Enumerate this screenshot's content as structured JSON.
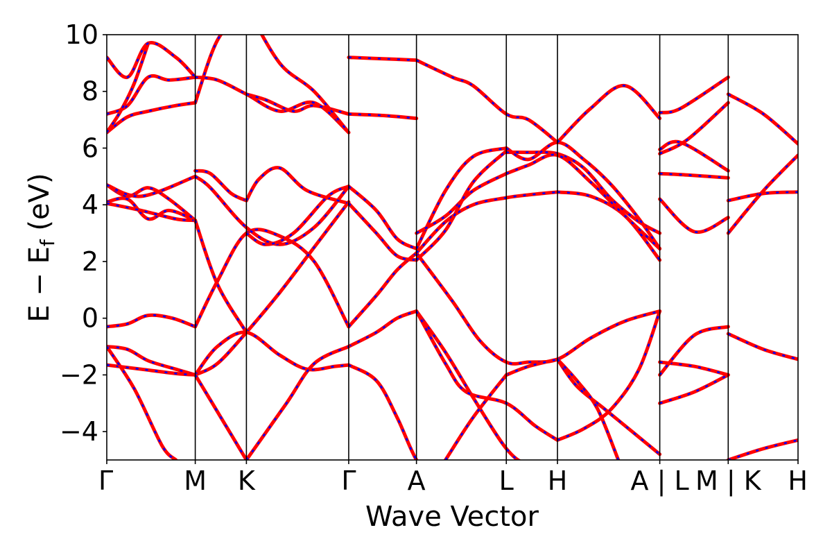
{
  "chart_data": {
    "type": "line",
    "title": "",
    "xlabel": "Wave Vector",
    "ylabel_parts": {
      "main": "E − E",
      "sub": "f",
      "unit": " (eV)"
    },
    "ylim": [
      -5,
      10
    ],
    "yticks": [
      -4,
      -2,
      0,
      2,
      4,
      6,
      8,
      10
    ],
    "ytick_labels": [
      "−4",
      "−2",
      "0",
      "2",
      "4",
      "6",
      "8",
      "10"
    ],
    "xlim": [
      0,
      10
    ],
    "kpoints": [
      {
        "label": "Γ",
        "x": 0
      },
      {
        "label": "M",
        "x": 1.28
      },
      {
        "label": "K",
        "x": 2.02
      },
      {
        "label": "Γ",
        "x": 3.5
      },
      {
        "label": "A",
        "x": 4.48
      },
      {
        "label": "L",
        "x": 5.78
      },
      {
        "label": "H",
        "x": 6.52
      },
      {
        "label": "A | L",
        "x": 8.0
      },
      {
        "label": "M | K",
        "x": 8.99
      },
      {
        "label": "H",
        "x": 10.0
      }
    ],
    "grid": false,
    "legend": "none",
    "colors": {
      "solid": "#ff0000",
      "dashed": "#0000ff"
    },
    "series": [
      {
        "x": [
          0,
          0.3,
          0.6,
          0.95,
          1.28
        ],
        "y": [
          -0.3,
          -0.2,
          0.1,
          0.0,
          -0.3
        ]
      },
      {
        "x": [
          1.28,
          1.6,
          2.02,
          2.5,
          3.0,
          3.5
        ],
        "y": [
          -0.3,
          1.3,
          3.0,
          2.9,
          2.0,
          -0.3
        ]
      },
      {
        "x": [
          3.5,
          3.9,
          4.2,
          4.48
        ],
        "y": [
          -0.3,
          0.8,
          1.7,
          2.3
        ]
      },
      {
        "x": [
          4.48,
          5.0,
          5.4,
          5.78,
          6.1,
          6.52,
          7.0,
          7.5,
          8.0
        ],
        "y": [
          2.3,
          0.6,
          -0.8,
          -1.55,
          -1.55,
          -1.45,
          -0.7,
          -0.1,
          0.25
        ]
      },
      {
        "x": [
          0,
          0.3,
          0.6,
          1.0,
          1.28
        ],
        "y": [
          -1.0,
          -1.1,
          -1.5,
          -1.8,
          -2.0
        ]
      },
      {
        "x": [
          0,
          0.5,
          1.0,
          1.28
        ],
        "y": [
          -1.65,
          -1.8,
          -1.95,
          -2.0
        ]
      },
      {
        "x": [
          1.28,
          1.6,
          2.02,
          2.5,
          3.0,
          3.5
        ],
        "y": [
          -2.0,
          -1.6,
          -0.5,
          0.9,
          2.5,
          4.1
        ]
      },
      {
        "x": [
          1.28,
          1.6,
          2.02,
          2.5,
          2.9,
          3.3,
          3.5
        ],
        "y": [
          -2.0,
          -1.0,
          -0.5,
          -1.3,
          -1.8,
          -1.7,
          -1.65
        ]
      },
      {
        "x": [
          3.5,
          3.9,
          4.2,
          4.48
        ],
        "y": [
          -1.0,
          -0.5,
          0.0,
          0.25
        ]
      },
      {
        "x": [
          3.5,
          3.9,
          4.2,
          4.48,
          4.8,
          5.2
        ],
        "y": [
          -1.65,
          -2.2,
          -3.5,
          -5.0,
          -6.0,
          -7.0
        ]
      },
      {
        "x": [
          4.48,
          4.9,
          5.3,
          5.78,
          6.1,
          6.52
        ],
        "y": [
          0.25,
          -1.2,
          -2.8,
          -4.6,
          -5.2,
          -5.5
        ]
      },
      {
        "x": [
          4.48,
          4.9,
          5.2,
          5.78,
          6.2,
          6.52
        ],
        "y": [
          0.25,
          -1.6,
          -2.6,
          -3.0,
          -3.8,
          -4.3
        ]
      },
      {
        "x": [
          5.78,
          6.1,
          6.52
        ],
        "y": [
          -2.0,
          -1.7,
          -1.45
        ]
      },
      {
        "x": [
          4.9,
          5.3,
          5.78
        ],
        "y": [
          -5.0,
          -3.5,
          -2.0
        ]
      },
      {
        "x": [
          6.52,
          6.9,
          7.3,
          7.7,
          8.0
        ],
        "y": [
          -4.3,
          -3.9,
          -3.2,
          -1.8,
          0.25
        ]
      },
      {
        "x": [
          6.52,
          6.8,
          7.2,
          7.6,
          8.0
        ],
        "y": [
          -1.45,
          -2.4,
          -3.2,
          -4.0,
          -4.8
        ]
      },
      {
        "x": [
          6.52,
          6.8,
          7.1,
          7.4
        ],
        "y": [
          -1.45,
          -2.2,
          -3.2,
          -5.0
        ]
      },
      {
        "x": [
          0,
          0.4,
          0.8,
          1.0
        ],
        "y": [
          -1.0,
          -2.5,
          -4.5,
          -5.0
        ]
      },
      {
        "x": [
          1.28,
          1.7,
          2.02
        ],
        "y": [
          -2.0,
          -3.7,
          -5.0
        ]
      },
      {
        "x": [
          2.02,
          2.6,
          3.0,
          3.5
        ],
        "y": [
          -5.0,
          -3.0,
          -1.6,
          -1.0
        ]
      },
      {
        "x": [
          0,
          0.3,
          0.6,
          0.9,
          1.28
        ],
        "y": [
          4.1,
          4.2,
          3.5,
          3.8,
          3.45
        ]
      },
      {
        "x": [
          0,
          0.3,
          0.6,
          0.9,
          1.28
        ],
        "y": [
          4.7,
          4.3,
          4.6,
          4.2,
          3.45
        ]
      },
      {
        "x": [
          0,
          0.5,
          1.0,
          1.28
        ],
        "y": [
          4.05,
          3.8,
          3.5,
          3.45
        ]
      },
      {
        "x": [
          0,
          0.5,
          1.28
        ],
        "y": [
          4.7,
          4.3,
          5.0
        ]
      },
      {
        "x": [
          1.28,
          1.6,
          2.02
        ],
        "y": [
          3.45,
          1.2,
          -0.5
        ]
      },
      {
        "x": [
          1.28,
          1.5,
          1.8,
          2.02
        ],
        "y": [
          5.2,
          5.1,
          4.4,
          4.15
        ]
      },
      {
        "x": [
          1.28,
          1.5,
          2.02,
          2.5,
          3.0,
          3.5
        ],
        "y": [
          5.0,
          4.6,
          3.2,
          2.6,
          3.2,
          4.65
        ]
      },
      {
        "x": [
          2.02,
          2.2,
          2.5,
          2.9,
          3.5
        ],
        "y": [
          4.15,
          4.9,
          5.3,
          4.5,
          4.05
        ]
      },
      {
        "x": [
          2.02,
          2.3,
          2.7,
          3.2,
          3.5
        ],
        "y": [
          3.0,
          2.6,
          3.0,
          4.3,
          4.65
        ]
      },
      {
        "x": [
          3.5,
          3.9,
          4.2,
          4.48
        ],
        "y": [
          4.65,
          3.8,
          2.8,
          2.45
        ]
      },
      {
        "x": [
          3.5,
          3.9,
          4.2,
          4.48
        ],
        "y": [
          4.05,
          3.0,
          2.2,
          2.05
        ]
      },
      {
        "x": [
          4.48,
          4.9,
          5.3,
          5.78,
          6.1,
          6.52
        ],
        "y": [
          2.3,
          3.4,
          4.0,
          4.25,
          4.35,
          4.45
        ]
      },
      {
        "x": [
          4.48,
          4.9,
          5.3,
          5.78
        ],
        "y": [
          2.45,
          4.5,
          5.7,
          6.0
        ]
      },
      {
        "x": [
          4.48,
          4.9,
          5.3,
          5.78
        ],
        "y": [
          3.0,
          3.6,
          4.5,
          5.1
        ]
      },
      {
        "x": [
          4.48,
          4.9,
          5.3,
          5.78
        ],
        "y": [
          2.05,
          3.1,
          4.8,
          5.9
        ]
      },
      {
        "x": [
          5.78,
          6.1,
          6.52,
          6.9,
          7.3,
          7.7,
          8.0
        ],
        "y": [
          5.85,
          5.85,
          5.8,
          5.3,
          4.2,
          3.4,
          3.0
        ]
      },
      {
        "x": [
          5.78,
          6.1,
          6.52,
          6.9,
          7.3,
          7.7,
          8.0
        ],
        "y": [
          6.0,
          5.6,
          6.2,
          5.6,
          4.7,
          3.5,
          2.45
        ]
      },
      {
        "x": [
          6.52,
          7.0,
          7.5,
          8.0
        ],
        "y": [
          4.45,
          4.3,
          3.6,
          2.05
        ]
      },
      {
        "x": [
          5.78,
          6.1,
          6.52,
          7.0,
          7.5,
          8.0
        ],
        "y": [
          5.1,
          5.4,
          5.75,
          4.8,
          3.6,
          2.45
        ]
      },
      {
        "x": [
          0,
          0.3,
          0.6,
          1.0,
          1.28
        ],
        "y": [
          6.55,
          7.1,
          7.3,
          7.5,
          7.6
        ]
      },
      {
        "x": [
          0,
          0.3,
          0.6,
          0.9,
          1.28
        ],
        "y": [
          7.2,
          7.5,
          8.5,
          8.4,
          8.5
        ]
      },
      {
        "x": [
          0,
          0.2,
          0.4,
          0.6
        ],
        "y": [
          6.55,
          7.3,
          8.3,
          9.7
        ]
      },
      {
        "x": [
          0,
          0.3,
          0.6,
          1.0,
          1.28
        ],
        "y": [
          9.2,
          8.5,
          9.7,
          9.2,
          8.5
        ]
      },
      {
        "x": [
          1.28,
          1.6,
          2.02
        ],
        "y": [
          7.6,
          9.8,
          11.0
        ]
      },
      {
        "x": [
          1.28,
          1.6,
          2.02,
          2.5,
          3.0,
          3.5
        ],
        "y": [
          8.5,
          8.4,
          7.9,
          7.3,
          7.6,
          6.55
        ]
      },
      {
        "x": [
          2.02,
          2.3,
          2.7,
          3.0,
          3.5
        ],
        "y": [
          7.9,
          7.7,
          7.3,
          7.5,
          7.2
        ]
      },
      {
        "x": [
          2.02,
          2.5,
          3.0,
          3.5
        ],
        "y": [
          11,
          9.0,
          8.0,
          6.55
        ]
      },
      {
        "x": [
          3.5,
          4.0,
          4.48
        ],
        "y": [
          7.2,
          7.15,
          7.05
        ]
      },
      {
        "x": [
          3.5,
          4.0,
          4.48
        ],
        "y": [
          9.2,
          9.15,
          9.1
        ]
      },
      {
        "x": [
          4.48,
          5.0,
          5.3,
          5.78,
          6.1,
          6.52
        ],
        "y": [
          9.1,
          8.5,
          8.2,
          7.2,
          7.0,
          6.2
        ]
      },
      {
        "x": [
          6.52,
          7.0,
          7.5,
          8.0
        ],
        "y": [
          6.2,
          7.4,
          8.2,
          7.05
        ]
      },
      {
        "x": [
          8.0,
          8.3,
          8.99
        ],
        "y": [
          7.25,
          7.4,
          8.5
        ]
      },
      {
        "x": [
          8.0,
          8.3,
          8.99
        ],
        "y": [
          5.95,
          6.2,
          5.2
        ]
      },
      {
        "x": [
          8.0,
          8.4,
          8.99
        ],
        "y": [
          5.8,
          6.3,
          7.6
        ]
      },
      {
        "x": [
          8.0,
          8.4,
          8.99
        ],
        "y": [
          5.1,
          5.05,
          4.95
        ]
      },
      {
        "x": [
          8.0,
          8.5,
          8.99
        ],
        "y": [
          4.2,
          3.05,
          3.55
        ]
      },
      {
        "x": [
          8.0,
          8.5,
          8.99
        ],
        "y": [
          -1.55,
          -1.7,
          -2.0
        ]
      },
      {
        "x": [
          8.0,
          8.5,
          8.99
        ],
        "y": [
          -2.0,
          -0.6,
          -0.3
        ]
      },
      {
        "x": [
          8.0,
          8.5,
          8.99
        ],
        "y": [
          -3.0,
          -2.6,
          -2.0
        ]
      },
      {
        "x": [
          8.99,
          9.5,
          10.0
        ],
        "y": [
          7.9,
          7.2,
          6.15
        ]
      },
      {
        "x": [
          8.99,
          9.5,
          10.0
        ],
        "y": [
          4.15,
          4.4,
          4.45
        ]
      },
      {
        "x": [
          8.99,
          9.5,
          10.0
        ],
        "y": [
          3.0,
          4.5,
          5.75
        ]
      },
      {
        "x": [
          8.99,
          9.5,
          10.0
        ],
        "y": [
          -0.55,
          -1.1,
          -1.45
        ]
      },
      {
        "x": [
          8.99,
          9.5,
          10.0
        ],
        "y": [
          -5.0,
          -4.6,
          -4.3
        ]
      }
    ]
  }
}
